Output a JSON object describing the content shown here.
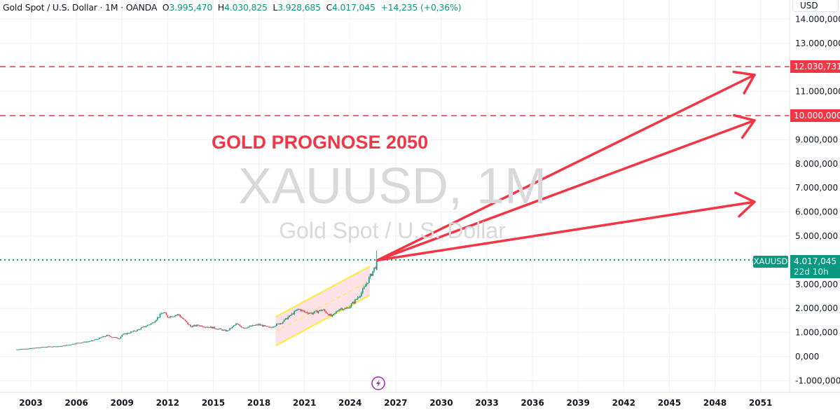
{
  "legend": {
    "symbol_name": "Gold Spot / U.S. Dollar · 1M · OANDA",
    "open_label": "O",
    "open": "3.995,470",
    "high_label": "H",
    "high": "4.030,825",
    "low_label": "L",
    "low": "3.928,685",
    "close_label": "C",
    "close": "4.017,045",
    "change": "+14,235 (+0,36%)"
  },
  "currency_button": "USD",
  "watermark": {
    "symbol": "XAUUSD, 1M",
    "description": "Gold Spot / U.S. Dollar"
  },
  "annotation": {
    "title": "GOLD PROGNOSE 2050",
    "color": "#f23645"
  },
  "colors": {
    "up": "#089981",
    "down": "#f23645",
    "arrow": "#f23645",
    "channel": "#ffeb3b",
    "channel_fill": "#fcdde2"
  },
  "price_labels": {
    "target_high": "12.030,731",
    "target_low": "10.000,000",
    "current_symbol": "XAUUSD",
    "current_price": "4.017,045",
    "countdown": "22d 10h"
  },
  "bottom_icon": "lightning-icon",
  "chart_data": {
    "type": "candlestick",
    "title": "",
    "xlabel": "",
    "ylabel": "",
    "xlim": [
      2001,
      2052.9
    ],
    "ylim": [
      -1400,
      14250
    ],
    "grid": true,
    "x_ticks": [
      "2003",
      "2006",
      "2009",
      "2012",
      "2015",
      "2018",
      "2021",
      "2024",
      "2027",
      "2030",
      "2033",
      "2036",
      "2039",
      "2042",
      "2045",
      "2048",
      "2051"
    ],
    "y_ticks": [
      {
        "value": 14000,
        "label": "14.000,000"
      },
      {
        "value": 13000,
        "label": "13.000,000"
      },
      {
        "value": 11000,
        "label": "11.000,000"
      },
      {
        "value": 9000,
        "label": "9.000,000"
      },
      {
        "value": 8000,
        "label": "8.000,000"
      },
      {
        "value": 7000,
        "label": "7.000,000"
      },
      {
        "value": 6000,
        "label": "6.000,000"
      },
      {
        "value": 5000,
        "label": "5.000,000"
      },
      {
        "value": 3000,
        "label": "3.000,000"
      },
      {
        "value": 2000,
        "label": "2.000,000"
      },
      {
        "value": 1000,
        "label": "1.000,000"
      },
      {
        "value": 0,
        "label": "0,000"
      },
      {
        "value": -1000,
        "label": "-1.000,000"
      }
    ],
    "price_path": [
      [
        2002,
        300
      ],
      [
        2003,
        345
      ],
      [
        2004,
        410
      ],
      [
        2005,
        430
      ],
      [
        2006,
        560
      ],
      [
        2007,
        650
      ],
      [
        2008,
        880
      ],
      [
        2008.8,
        750
      ],
      [
        2009,
        900
      ],
      [
        2010,
        1100
      ],
      [
        2011,
        1400
      ],
      [
        2011.7,
        1850
      ],
      [
        2012,
        1650
      ],
      [
        2012.7,
        1750
      ],
      [
        2013.5,
        1250
      ],
      [
        2014,
        1300
      ],
      [
        2015,
        1200
      ],
      [
        2015.9,
        1060
      ],
      [
        2016.5,
        1350
      ],
      [
        2017,
        1200
      ],
      [
        2018,
        1330
      ],
      [
        2018.7,
        1200
      ],
      [
        2019.5,
        1420
      ],
      [
        2020.6,
        1980
      ],
      [
        2021,
        1850
      ],
      [
        2021.5,
        1800
      ],
      [
        2022.2,
        1950
      ],
      [
        2022.8,
        1650
      ],
      [
        2023.3,
        2000
      ],
      [
        2023.8,
        1990
      ],
      [
        2024.3,
        2300
      ],
      [
        2024.8,
        2700
      ],
      [
        2025.3,
        3300
      ],
      [
        2025.7,
        3800
      ],
      [
        2025.83,
        4017.045
      ]
    ],
    "last_candle": {
      "open": 3995.47,
      "high": 4030.825,
      "low": 3928.685,
      "close": 4017.045
    },
    "horizontal_lines": [
      12030.731,
      10000
    ],
    "current_price": 4017.045,
    "channel": {
      "start": 2019.1,
      "end": 2025.3,
      "upper": [
        1650,
        3750
      ],
      "lower": [
        450,
        2550
      ]
    },
    "forecast_arrows": [
      {
        "from": [
          2025.8,
          4000
        ],
        "to": [
          2050.6,
          11690
        ]
      },
      {
        "from": [
          2025.8,
          4000
        ],
        "to": [
          2050.6,
          9800
        ]
      },
      {
        "from": [
          2025.8,
          4000
        ],
        "to": [
          2050.6,
          6420
        ]
      }
    ]
  }
}
